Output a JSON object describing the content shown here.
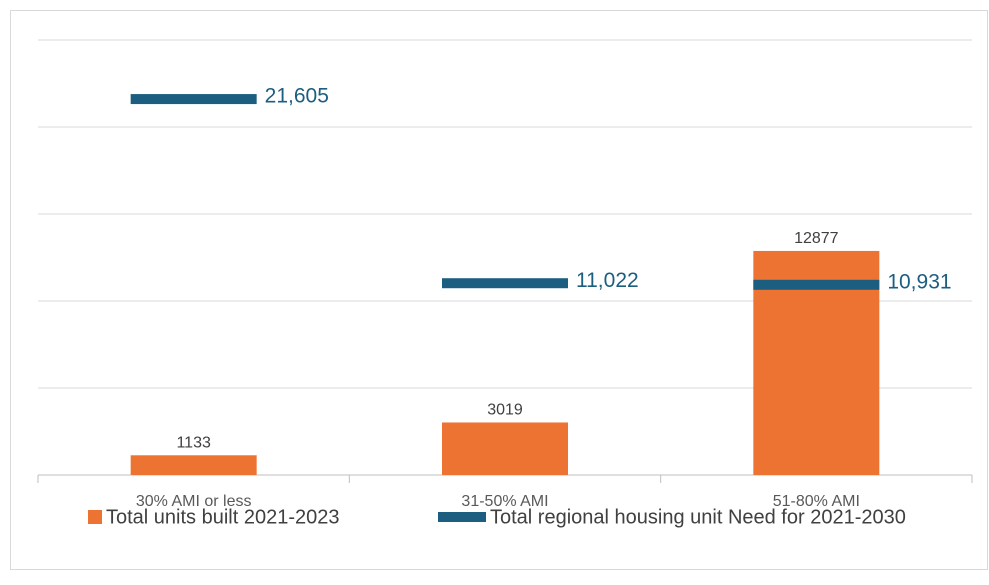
{
  "chart_data": {
    "type": "bar",
    "categories": [
      "30% AMI or less",
      "31-50% AMI",
      "51-80% AMI"
    ],
    "series": [
      {
        "name": "Total units built 2021-2023",
        "color": "#ed7333",
        "style": "bar",
        "values": [
          1133,
          3019,
          12877
        ]
      },
      {
        "name": "Total regional housing unit Need for 2021-2030",
        "color": "#1b5e80",
        "style": "dash",
        "values": [
          21605,
          11022,
          10931
        ],
        "value_labels": [
          "21,605",
          "11,022",
          "10,931"
        ]
      }
    ],
    "ylim": [
      0,
      25000
    ],
    "yticks": [
      0,
      5000,
      10000,
      15000,
      20000,
      25000
    ],
    "grid": true
  }
}
